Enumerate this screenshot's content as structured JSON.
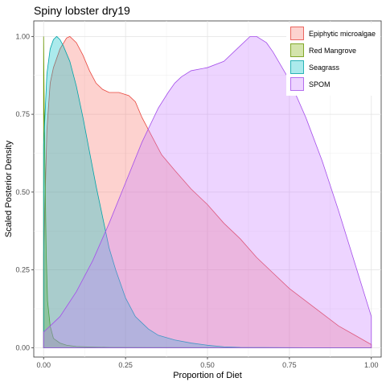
{
  "chart_data": {
    "type": "area",
    "title": "Spiny lobster dry19",
    "xlabel": "Proportion of Diet",
    "ylabel": "Scaled Posterior Density",
    "xlim": [
      -0.03,
      1.03
    ],
    "ylim": [
      -0.03,
      1.05
    ],
    "x_ticks": [
      0,
      0.25,
      0.5,
      0.75,
      1
    ],
    "x_tick_labels": [
      "0.00",
      "0.25",
      "0.50",
      "0.75",
      "1.00"
    ],
    "y_ticks": [
      0,
      0.25,
      0.5,
      0.75,
      1
    ],
    "y_tick_labels": [
      "0.00",
      "0.25",
      "0.50",
      "0.75",
      "1.00"
    ],
    "grid": true,
    "legend_position": "top-right",
    "series": [
      {
        "name": "Epiphytic microalgae",
        "fill": "#F8766D",
        "stroke": "#E8473E",
        "x": [
          0,
          0.01,
          0.02,
          0.03,
          0.05,
          0.07,
          0.08,
          0.1,
          0.12,
          0.14,
          0.16,
          0.18,
          0.2,
          0.23,
          0.26,
          0.28,
          0.3,
          0.33,
          0.36,
          0.4,
          0.45,
          0.5,
          0.55,
          0.6,
          0.65,
          0.7,
          0.75,
          0.8,
          0.85,
          0.9,
          0.95,
          1.0
        ],
        "y": [
          0.3,
          0.7,
          0.85,
          0.9,
          0.96,
          0.995,
          1.0,
          0.98,
          0.94,
          0.89,
          0.85,
          0.83,
          0.82,
          0.82,
          0.81,
          0.79,
          0.74,
          0.68,
          0.62,
          0.57,
          0.51,
          0.46,
          0.4,
          0.35,
          0.29,
          0.24,
          0.19,
          0.15,
          0.11,
          0.07,
          0.04,
          0.01
        ]
      },
      {
        "name": "Red Mangrove",
        "fill": "#7CAE00",
        "stroke": "#6A9600",
        "x": [
          0,
          0.002,
          0.005,
          0.008,
          0.012,
          0.02,
          0.03,
          0.05,
          0.07,
          0.1,
          0.15,
          0.2,
          0.3,
          0.5,
          0.7,
          1.0
        ],
        "y": [
          1.0,
          0.75,
          0.52,
          0.3,
          0.15,
          0.07,
          0.03,
          0.015,
          0.008,
          0.004,
          0.002,
          0.001,
          0.0005,
          0.0002,
          0.0001,
          0.0
        ]
      },
      {
        "name": "Seagrass",
        "fill": "#00BFC4",
        "stroke": "#00A3A8",
        "x": [
          0,
          0.01,
          0.02,
          0.03,
          0.04,
          0.05,
          0.06,
          0.08,
          0.1,
          0.12,
          0.14,
          0.16,
          0.18,
          0.2,
          0.22,
          0.25,
          0.28,
          0.3,
          0.32,
          0.35,
          0.4,
          0.45,
          0.5,
          0.55,
          0.6,
          0.8,
          1.0
        ],
        "y": [
          0.65,
          0.88,
          0.96,
          0.99,
          1.0,
          0.99,
          0.97,
          0.92,
          0.84,
          0.74,
          0.63,
          0.52,
          0.42,
          0.32,
          0.25,
          0.16,
          0.1,
          0.08,
          0.06,
          0.04,
          0.025,
          0.015,
          0.008,
          0.003,
          0.001,
          0.0,
          0.0
        ]
      },
      {
        "name": "SPOM",
        "fill": "#C77CFF",
        "stroke": "#A44FEA",
        "x": [
          0,
          0.02,
          0.05,
          0.1,
          0.15,
          0.2,
          0.25,
          0.3,
          0.35,
          0.38,
          0.4,
          0.42,
          0.45,
          0.5,
          0.55,
          0.6,
          0.63,
          0.65,
          0.68,
          0.7,
          0.75,
          0.8,
          0.85,
          0.9,
          0.95,
          1.0
        ],
        "y": [
          0.05,
          0.07,
          0.1,
          0.18,
          0.28,
          0.4,
          0.53,
          0.66,
          0.77,
          0.82,
          0.85,
          0.87,
          0.89,
          0.9,
          0.92,
          0.97,
          1.0,
          1.0,
          0.98,
          0.95,
          0.86,
          0.74,
          0.6,
          0.44,
          0.27,
          0.1
        ]
      }
    ]
  }
}
